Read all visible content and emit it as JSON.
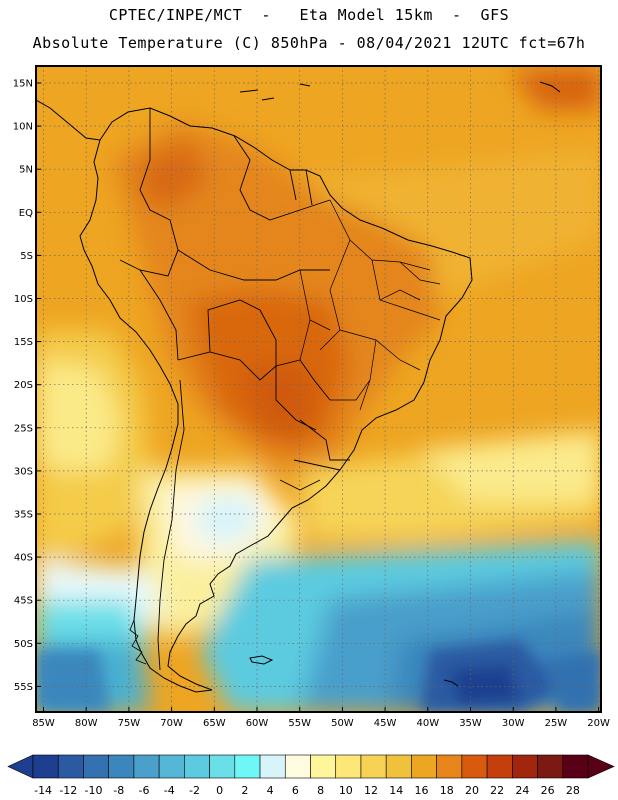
{
  "header": {
    "line1": "CPTEC/INPE/MCT  -   Eta Model 15km  -  GFS",
    "line2": "Absolute Temperature (C) 850hPa - 08/04/2021 12UTC fct=67h"
  },
  "axes": {
    "lat_labels": [
      "15N",
      "10N",
      "5N",
      "EQ",
      "5S",
      "10S",
      "15S",
      "20S",
      "25S",
      "30S",
      "35S",
      "40S",
      "45S",
      "50S",
      "55S"
    ],
    "lon_labels": [
      "85W",
      "80W",
      "75W",
      "70W",
      "65W",
      "60W",
      "55W",
      "50W",
      "45W",
      "40W",
      "35W",
      "30W",
      "25W",
      "20W"
    ]
  },
  "colorbar": {
    "labels": [
      "-14",
      "-12",
      "-10",
      "-8",
      "-6",
      "-4",
      "-2",
      "0",
      "2",
      "4",
      "6",
      "8",
      "10",
      "12",
      "14",
      "16",
      "18",
      "20",
      "22",
      "24",
      "26",
      "28"
    ],
    "colors": [
      "#1e3f8f",
      "#2a5aa2",
      "#3371b0",
      "#3b87bd",
      "#4a9fcb",
      "#56b6d6",
      "#5ccbe0",
      "#6adfe8",
      "#6ff6f6",
      "#d7f4fa",
      "#fffbe0",
      "#fff59b",
      "#fde776",
      "#f6d354",
      "#f0c13a",
      "#eda622",
      "#e7851b",
      "#d85a0f",
      "#c43f0c",
      "#a2260d",
      "#7a1a12",
      "#5a0016"
    ]
  },
  "chart_data": {
    "type": "heatmap",
    "title": "Absolute Temperature (C) 850hPa - 08/04/2021 12UTC fct=67h",
    "subtitle": "CPTEC/INPE/MCT - Eta Model 15km - GFS",
    "variable": "Absolute Temperature",
    "units": "C",
    "level": "850hPa",
    "lon_range": [
      -85,
      -20
    ],
    "lat_range": [
      -57,
      16
    ],
    "color_scale_range": [
      -14,
      28
    ]
  }
}
